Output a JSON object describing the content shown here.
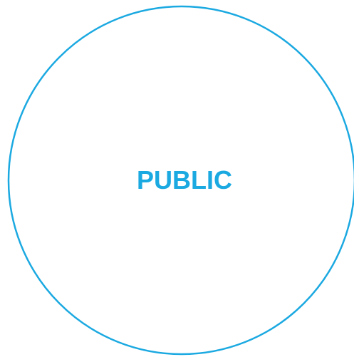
{
  "diagram": {
    "label": "PUBLIC",
    "colors": {
      "stroke": "#1ba9e1",
      "label": "#1ba9e1",
      "fill": "#ffffff"
    }
  }
}
